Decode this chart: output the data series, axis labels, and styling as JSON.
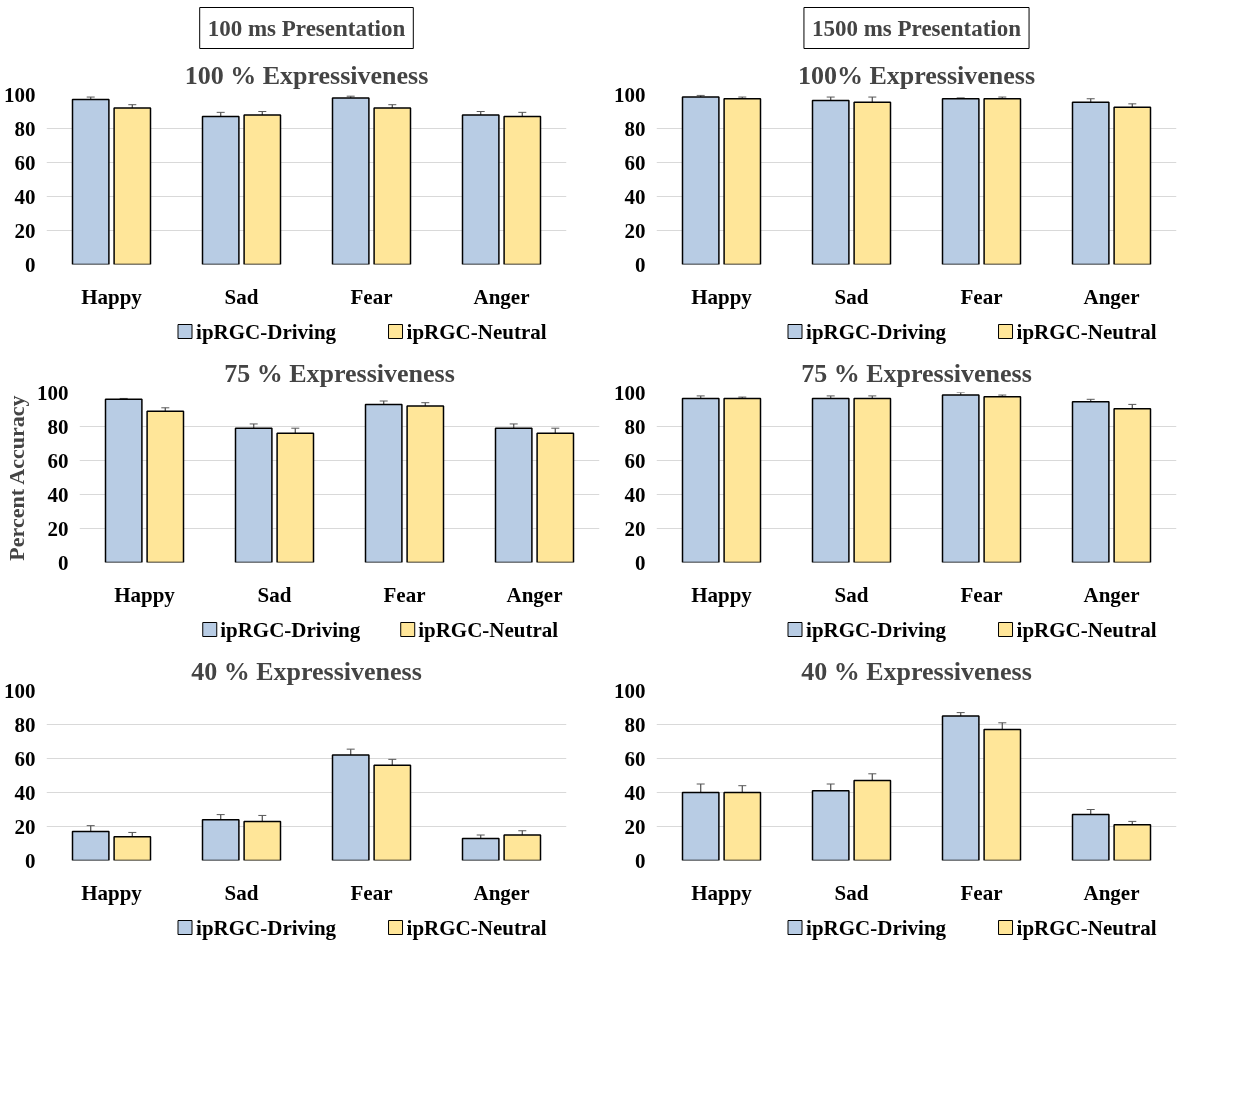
{
  "chart_data": [
    {
      "type": "bar",
      "subtitle": "100 ms Presentation",
      "title": "100 % Expressiveness",
      "categories": [
        "Happy",
        "Sad",
        "Fear",
        "Anger"
      ],
      "ylim": [
        0,
        100
      ],
      "yticks": [
        0,
        20,
        40,
        60,
        80,
        100
      ],
      "grid": "y",
      "legend": "bottom",
      "series": [
        {
          "name": "ipRGC-Driving",
          "color": "#b8cce4",
          "values": [
            97,
            87,
            98,
            88
          ],
          "errors": [
            1.5,
            2.5,
            1,
            2
          ]
        },
        {
          "name": "ipRGC-Neutral",
          "color": "#ffe699",
          "values": [
            92,
            88,
            92,
            87
          ],
          "errors": [
            2,
            2,
            2,
            2.5
          ]
        }
      ]
    },
    {
      "type": "bar",
      "subtitle": "1500 ms Presentation",
      "title": "100% Expressiveness",
      "categories": [
        "Happy",
        "Sad",
        "Fear",
        "Anger"
      ],
      "ylim": [
        0,
        100
      ],
      "yticks": [
        0,
        20,
        40,
        60,
        80,
        100
      ],
      "grid": "y",
      "legend": "bottom",
      "series": [
        {
          "name": "ipRGC-Driving",
          "color": "#b8cce4",
          "values": [
            98.5,
            96.5,
            97.5,
            95.5
          ],
          "errors": [
            1,
            2,
            0.5,
            2
          ]
        },
        {
          "name": "ipRGC-Neutral",
          "color": "#ffe699",
          "values": [
            97.5,
            95.5,
            97.5,
            92.5
          ],
          "errors": [
            1,
            3,
            1,
            2
          ]
        }
      ]
    },
    {
      "type": "bar",
      "title": "75 % Expressiveness",
      "ylabel": "Percent Accuracy",
      "categories": [
        "Happy",
        "Sad",
        "Fear",
        "Anger"
      ],
      "ylim": [
        0,
        100
      ],
      "yticks": [
        0,
        20,
        40,
        60,
        80,
        100
      ],
      "grid": "y",
      "legend": "bottom",
      "series": [
        {
          "name": "ipRGC-Driving",
          "color": "#b8cce4",
          "values": [
            96,
            79,
            93,
            79
          ],
          "errors": [
            0.5,
            2.5,
            2,
            2.5
          ]
        },
        {
          "name": "ipRGC-Neutral",
          "color": "#ffe699",
          "values": [
            89,
            76,
            92,
            76
          ],
          "errors": [
            2,
            3,
            2,
            3
          ]
        }
      ]
    },
    {
      "type": "bar",
      "title": "75 % Expressiveness",
      "categories": [
        "Happy",
        "Sad",
        "Fear",
        "Anger"
      ],
      "ylim": [
        0,
        100
      ],
      "yticks": [
        0,
        20,
        40,
        60,
        80,
        100
      ],
      "grid": "y",
      "legend": "bottom",
      "series": [
        {
          "name": "ipRGC-Driving",
          "color": "#b8cce4",
          "values": [
            96.5,
            96.5,
            98.5,
            94.5
          ],
          "errors": [
            1.5,
            1.5,
            1.5,
            1.5
          ]
        },
        {
          "name": "ipRGC-Neutral",
          "color": "#ffe699",
          "values": [
            96.5,
            96.5,
            97.5,
            90.5
          ],
          "errors": [
            0.8,
            1.5,
            1,
            2.5
          ]
        }
      ]
    },
    {
      "type": "bar",
      "title": "40 % Expressiveness",
      "categories": [
        "Happy",
        "Sad",
        "Fear",
        "Anger"
      ],
      "ylim": [
        0,
        100
      ],
      "yticks": [
        0,
        20,
        40,
        60,
        80,
        100
      ],
      "grid": "y",
      "legend": "bottom",
      "series": [
        {
          "name": "ipRGC-Driving",
          "color": "#b8cce4",
          "values": [
            17,
            24,
            62,
            13
          ],
          "errors": [
            3.5,
            3,
            3.5,
            2
          ]
        },
        {
          "name": "ipRGC-Neutral",
          "color": "#ffe699",
          "values": [
            14,
            23,
            56,
            15
          ],
          "errors": [
            2.5,
            3.5,
            3.5,
            2.5
          ]
        }
      ]
    },
    {
      "type": "bar",
      "title": "40 % Expressiveness",
      "categories": [
        "Happy",
        "Sad",
        "Fear",
        "Anger"
      ],
      "ylim": [
        0,
        100
      ],
      "yticks": [
        0,
        20,
        40,
        60,
        80,
        100
      ],
      "grid": "y",
      "legend": "bottom",
      "series": [
        {
          "name": "ipRGC-Driving",
          "color": "#b8cce4",
          "values": [
            40,
            41,
            85,
            27
          ],
          "errors": [
            5,
            4,
            2,
            3
          ]
        },
        {
          "name": "ipRGC-Neutral",
          "color": "#ffe699",
          "values": [
            40,
            47,
            77,
            21
          ],
          "errors": [
            4,
            4,
            4,
            2
          ]
        }
      ]
    }
  ]
}
